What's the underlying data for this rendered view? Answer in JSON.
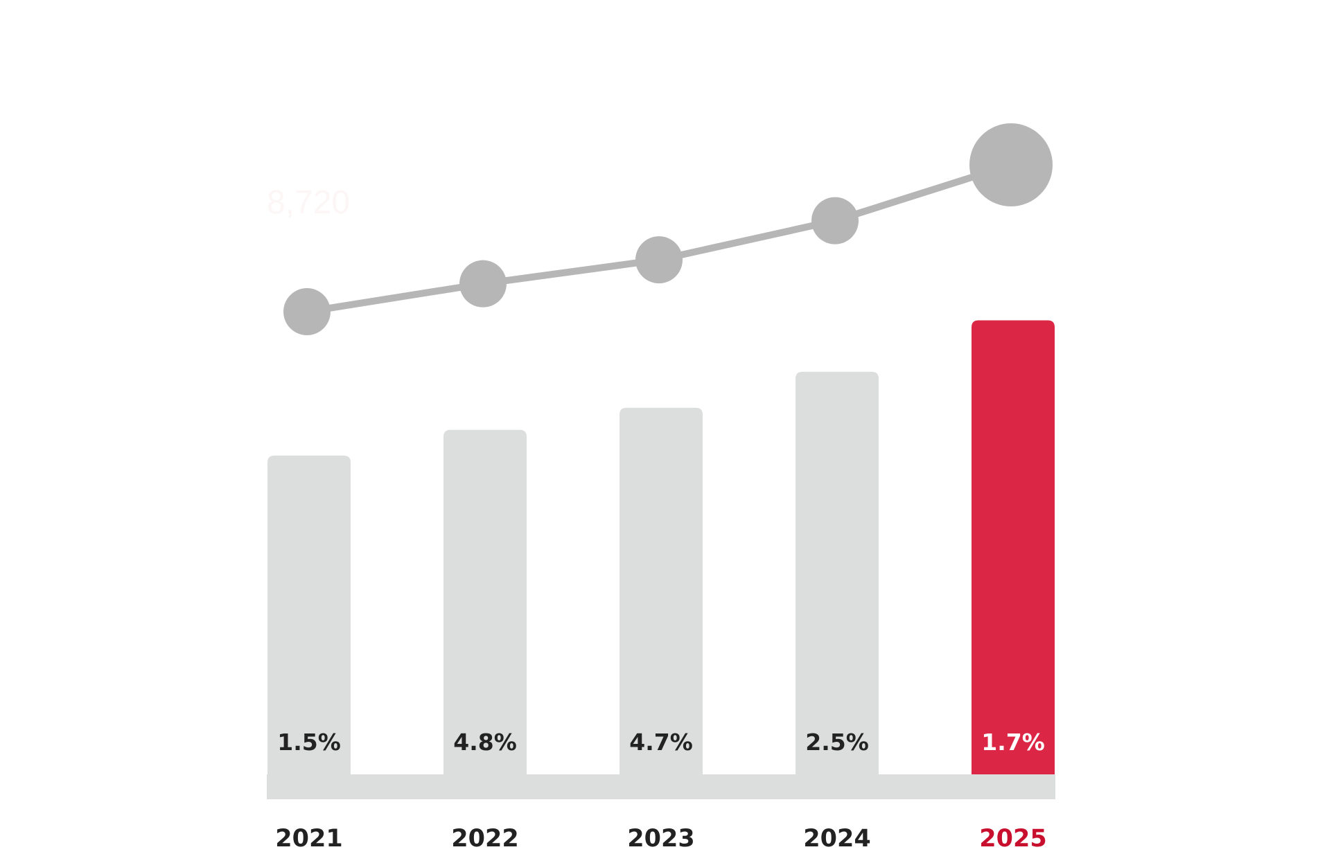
{
  "chart_data": {
    "type": "bar",
    "categories": [
      "2021",
      "2022",
      "2023",
      "2024",
      "2025"
    ],
    "series": [
      {
        "kind": "bar",
        "values": [
          7340,
          7690,
          7990,
          8480,
          9180
        ],
        "data_labels": [
          "1.5%",
          "4.8%",
          "4.7%",
          "2.5%",
          "1.7%"
        ]
      },
      {
        "kind": "line",
        "values": [
          7340,
          7690,
          7990,
          8480,
          9180
        ]
      }
    ],
    "ylim": [
      3000,
      9600
    ],
    "highlight_index": 4,
    "faint_value_label": "8,720",
    "title": "",
    "xlabel": "",
    "ylabel": "",
    "grid": false,
    "legend": "none",
    "colors": {
      "bar": "#dcdedd",
      "bar_highlight": "#db2745",
      "line": "#b5b6b5",
      "baseline": "#dcdedd",
      "label_dark": "#222222",
      "label_light": "#ffffff",
      "year_dark": "#222222",
      "year_highlight": "#c8102e",
      "faint_label": "#fdf6f7"
    }
  }
}
